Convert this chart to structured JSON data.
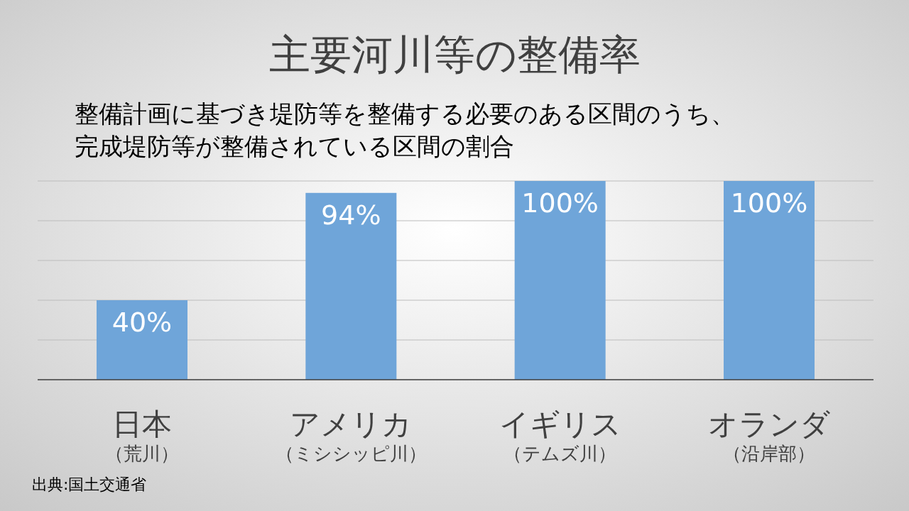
{
  "chart_data": {
    "type": "bar",
    "title": "主要河川等の整備率",
    "subtitle": "整備計画に基づき堤防等を整備する必要のある区間のうち、完成堤防等が整備されている区間の割合",
    "categories": [
      "日本（荒川）",
      "アメリカ（ミシシッピ川）",
      "イギリス（テムズ川）",
      "オランダ（沿岸部）"
    ],
    "values": [
      40,
      94,
      100,
      100
    ],
    "value_labels": [
      "40%",
      "94%",
      "100%",
      "100%"
    ],
    "color": "#6fa5d9",
    "ylim": [
      0,
      100
    ],
    "yticks": [
      {
        "value": 0,
        "label": null
      },
      {
        "value": 20,
        "label": null
      },
      {
        "value": 40,
        "label": null
      },
      {
        "value": 60,
        "label": null
      },
      {
        "value": 80,
        "label": null
      },
      {
        "value": 100,
        "label": null
      }
    ],
    "grid": "y",
    "tick_labels": "x",
    "annotations": [
      "出典:国土交通省"
    ]
  }
}
